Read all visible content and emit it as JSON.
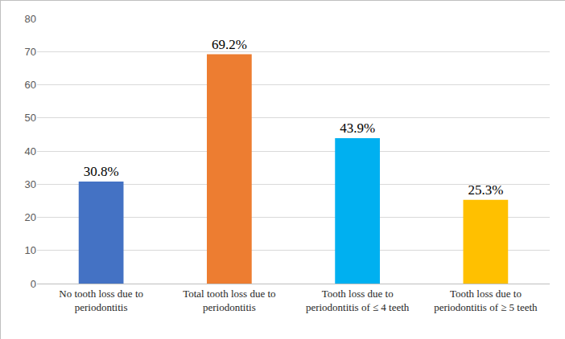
{
  "chart_data": {
    "type": "bar",
    "categories": [
      "No tooth loss due to periodontitis",
      "Total tooth loss due to periodontitis",
      "Tooth loss due to periodontitis of ≤ 4 teeth",
      "Tooth loss due to periodontitis of ≥ 5 teeth"
    ],
    "values": [
      30.8,
      69.2,
      43.9,
      25.3
    ],
    "value_labels": [
      "30.8%",
      "69.2%",
      "43.9%",
      "25.3%"
    ],
    "colors": [
      "#4472c4",
      "#ed7d31",
      "#00b0f0",
      "#ffc000"
    ],
    "ylim": [
      0,
      80
    ],
    "yticks": [
      0,
      10,
      20,
      30,
      40,
      50,
      60,
      70,
      80
    ],
    "grid": true,
    "data_labels": true
  }
}
